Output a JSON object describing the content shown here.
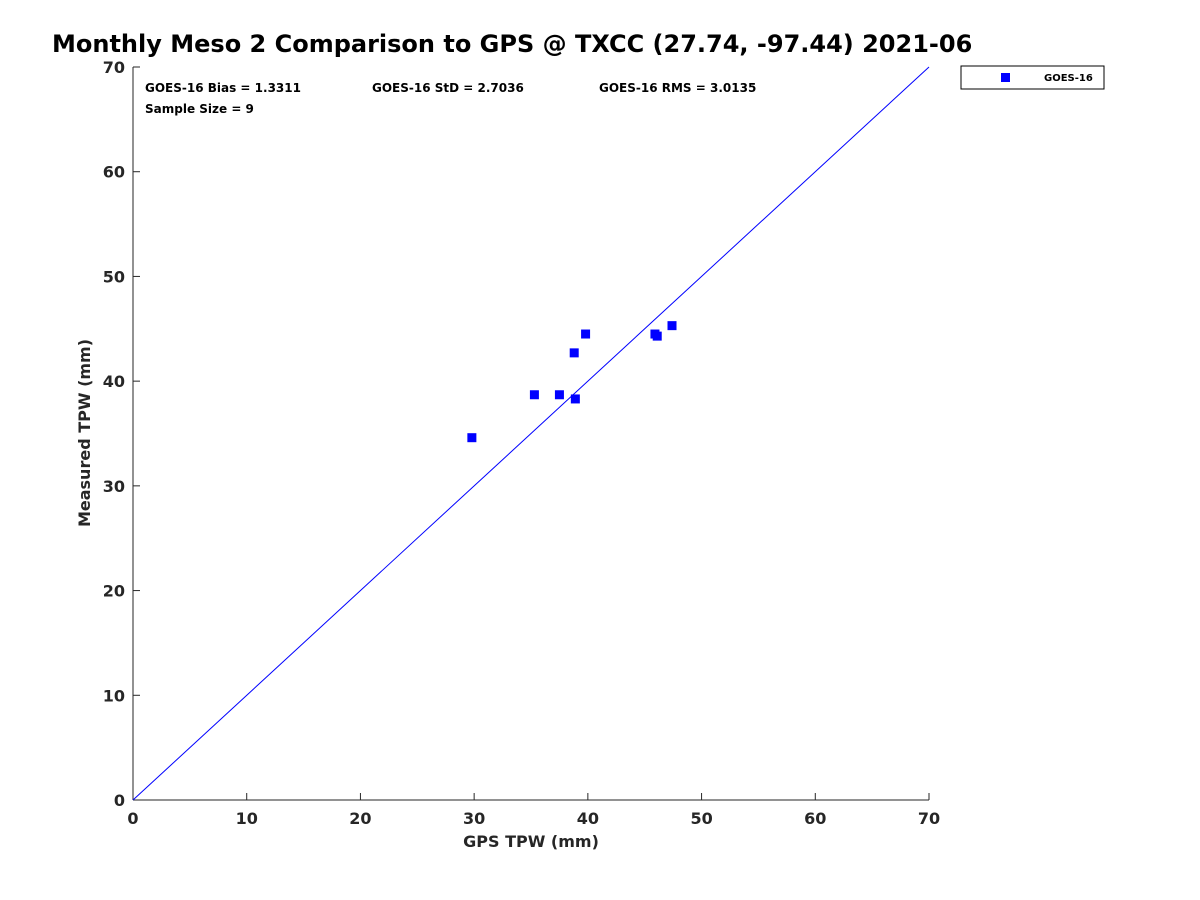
{
  "chart_data": {
    "type": "scatter",
    "title": "Monthly Meso 2 Comparison to GPS @ TXCC (27.74, -97.44) 2021-06",
    "xlabel": "GPS TPW (mm)",
    "ylabel": "Measured TPW (mm)",
    "xlim": [
      0,
      70
    ],
    "ylim": [
      0,
      70
    ],
    "xticks": [
      0,
      10,
      20,
      30,
      40,
      50,
      60,
      70
    ],
    "yticks": [
      0,
      10,
      20,
      30,
      40,
      50,
      60,
      70
    ],
    "grid": false,
    "legend_position": "outside-top-right",
    "series": [
      {
        "name": "GOES-16",
        "color": "#0000ff",
        "marker": "square",
        "x": [
          29.8,
          35.3,
          37.5,
          38.8,
          38.9,
          39.8,
          45.9,
          46.1,
          47.4
        ],
        "y": [
          34.6,
          38.7,
          38.7,
          42.7,
          38.3,
          44.5,
          44.5,
          44.3,
          45.3
        ]
      }
    ],
    "reference_line": {
      "name": "1:1 line",
      "color": "#0000ff",
      "from": [
        0,
        0
      ],
      "to": [
        70,
        70
      ]
    },
    "annotations": [
      "GOES-16 Bias = 1.3311",
      "GOES-16 StD = 2.7036",
      "GOES-16 RMS = 3.0135",
      "Sample Size = 9"
    ]
  }
}
